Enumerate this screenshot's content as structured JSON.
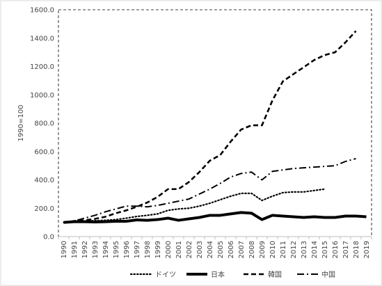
{
  "chart_data": {
    "type": "line",
    "title": "",
    "xlabel": "",
    "ylabel": "1990=100",
    "ylim": [
      0,
      1600
    ],
    "yticks": [
      "0.0",
      "200.0",
      "400.0",
      "600.0",
      "800.0",
      "1000.0",
      "1200.0",
      "1400.0",
      "1600.0"
    ],
    "x": [
      "1990",
      "1991",
      "1992",
      "1993",
      "1994",
      "1995",
      "1996",
      "1997",
      "1998",
      "1999",
      "2000",
      "2001",
      "2002",
      "2003",
      "2004",
      "2005",
      "2006",
      "2007",
      "2008",
      "2009",
      "2010",
      "2011",
      "2012",
      "2013",
      "2014",
      "2015",
      "2016",
      "2017",
      "2018",
      "2019"
    ],
    "grid": false,
    "legend_position": "bottom",
    "series": [
      {
        "name": "ドイツ",
        "style": "dotted",
        "color": "#000000",
        "values": [
          100,
          105,
          110,
          112,
          115,
          120,
          130,
          142,
          150,
          160,
          185,
          195,
          200,
          215,
          235,
          260,
          285,
          305,
          305,
          255,
          285,
          310,
          315,
          315,
          325,
          335,
          null,
          null,
          null,
          null
        ]
      },
      {
        "name": "日本",
        "style": "solid-thick",
        "color": "#000000",
        "values": [
          100,
          105,
          105,
          103,
          105,
          108,
          108,
          118,
          115,
          120,
          130,
          115,
          125,
          135,
          150,
          150,
          160,
          170,
          165,
          120,
          150,
          145,
          140,
          135,
          140,
          135,
          135,
          145,
          145,
          140
        ]
      },
      {
        "name": "韓国",
        "style": "dashed",
        "color": "#000000",
        "values": [
          100,
          110,
          115,
          125,
          140,
          165,
          185,
          210,
          240,
          280,
          335,
          335,
          385,
          455,
          535,
          575,
          670,
          755,
          785,
          785,
          960,
          1095,
          1145,
          1195,
          1245,
          1280,
          1300,
          1370,
          1450,
          null
        ]
      },
      {
        "name": "中国",
        "style": "dash-dot",
        "color": "#000000",
        "values": [
          100,
          110,
          130,
          150,
          175,
          195,
          215,
          215,
          210,
          220,
          235,
          250,
          265,
          300,
          335,
          375,
          420,
          445,
          455,
          400,
          460,
          470,
          480,
          485,
          490,
          495,
          500,
          530,
          550,
          null
        ]
      }
    ]
  }
}
